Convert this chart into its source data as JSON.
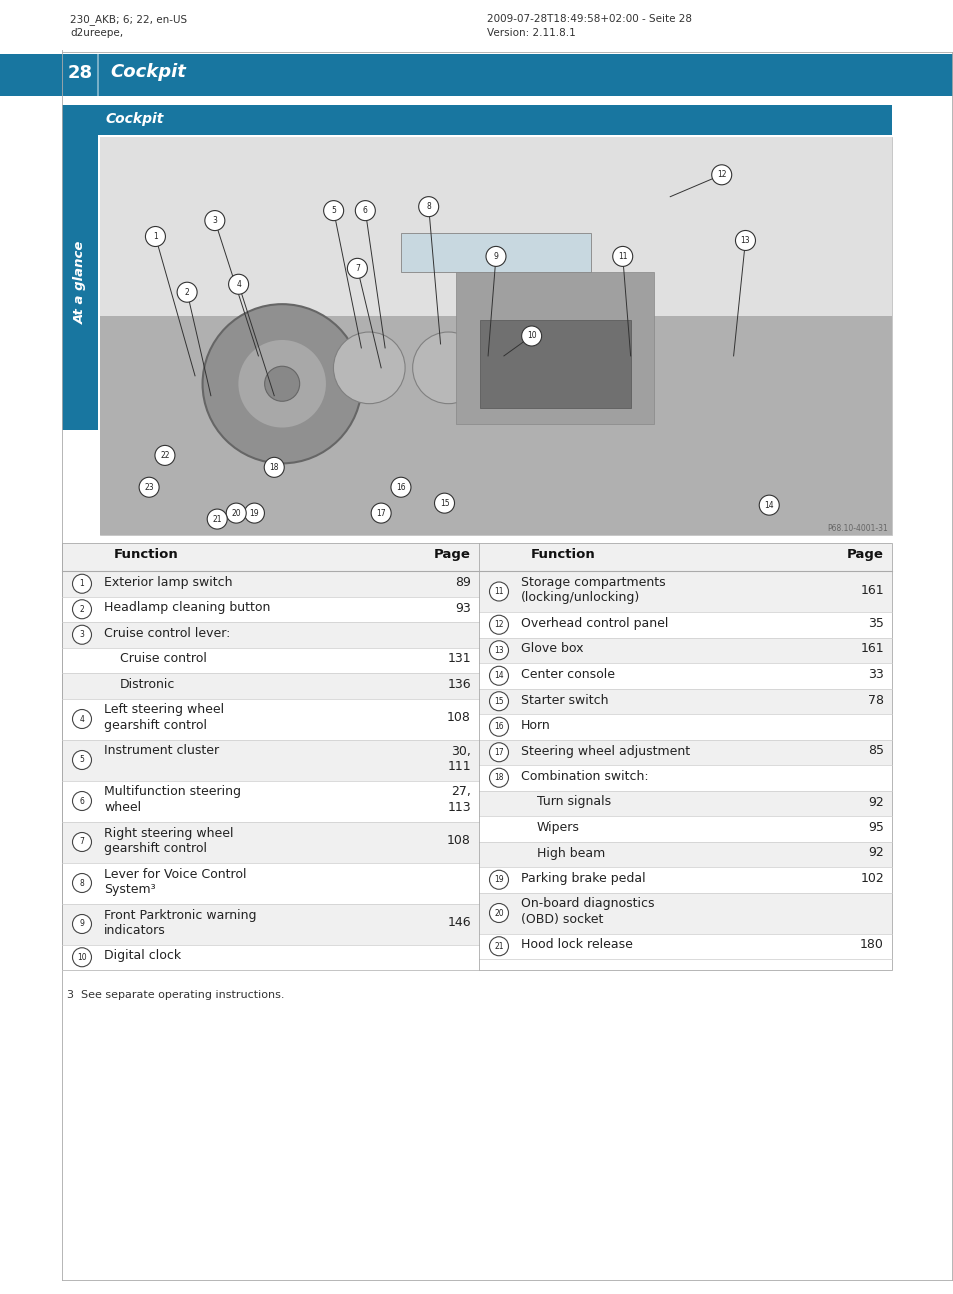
{
  "page_number": "28",
  "chapter_title": "Cockpit",
  "section_title": "Cockpit",
  "sidebar_text": "At a glance",
  "header_left_line1": "230_AKB; 6; 22, en-US",
  "header_left_line2": "d2ureepe,",
  "header_right_line1": "2009-07-28T18:49:58+02:00 - Seite 28",
  "header_right_line2": "Version: 2.11.8.1",
  "blue": "#1876a0",
  "page_bg": "#ffffff",
  "footnote": "3  See separate operating instructions.",
  "img_credit": "P68.10-4001-31",
  "left_rows": [
    {
      "num": "1",
      "func1": "Exterior lamp switch",
      "func2": "",
      "page": "89",
      "sub": false,
      "sub2": false
    },
    {
      "num": "2",
      "func1": "Headlamp cleaning button",
      "func2": "",
      "page": "93",
      "sub": false,
      "sub2": false
    },
    {
      "num": "3",
      "func1": "Cruise control lever:",
      "func2": "",
      "page": "",
      "sub": false,
      "sub2": false
    },
    {
      "num": null,
      "func1": "Cruise control",
      "func2": "",
      "page": "131",
      "sub": true,
      "sub2": false
    },
    {
      "num": null,
      "func1": "Distronic",
      "func2": "",
      "page": "136",
      "sub": true,
      "sub2": false
    },
    {
      "num": "4",
      "func1": "Left steering wheel",
      "func2": "gearshift control",
      "page": "108",
      "sub": false,
      "sub2": true
    },
    {
      "num": "5",
      "func1": "Instrument cluster",
      "func2": "",
      "page": "30,\n111",
      "sub": false,
      "sub2": false
    },
    {
      "num": "6",
      "func1": "Multifunction steering",
      "func2": "wheel",
      "page": "27,\n113",
      "sub": false,
      "sub2": true
    },
    {
      "num": "7",
      "func1": "Right steering wheel",
      "func2": "gearshift control",
      "page": "108",
      "sub": false,
      "sub2": true
    },
    {
      "num": "8",
      "func1": "Lever for Voice Control",
      "func2": "System³",
      "page": "",
      "sub": false,
      "sub2": true
    },
    {
      "num": "9",
      "func1": "Front Parktronic warning",
      "func2": "indicators",
      "page": "146",
      "sub": false,
      "sub2": true
    },
    {
      "num": "10",
      "func1": "Digital clock",
      "func2": "",
      "page": "",
      "sub": false,
      "sub2": false
    }
  ],
  "right_rows": [
    {
      "num": "11",
      "func1": "Storage compartments",
      "func2": "(locking/unlocking)",
      "page": "161",
      "sub": false,
      "sub2": true
    },
    {
      "num": "12",
      "func1": "Overhead control panel",
      "func2": "",
      "page": "35",
      "sub": false,
      "sub2": false
    },
    {
      "num": "13",
      "func1": "Glove box",
      "func2": "",
      "page": "161",
      "sub": false,
      "sub2": false
    },
    {
      "num": "14",
      "func1": "Center console",
      "func2": "",
      "page": "33",
      "sub": false,
      "sub2": false
    },
    {
      "num": "15",
      "func1": "Starter switch",
      "func2": "",
      "page": "78",
      "sub": false,
      "sub2": false
    },
    {
      "num": "16",
      "func1": "Horn",
      "func2": "",
      "page": "",
      "sub": false,
      "sub2": false
    },
    {
      "num": "17",
      "func1": "Steering wheel adjustment",
      "func2": "",
      "page": "85",
      "sub": false,
      "sub2": false
    },
    {
      "num": "18",
      "func1": "Combination switch:",
      "func2": "",
      "page": "",
      "sub": false,
      "sub2": false
    },
    {
      "num": null,
      "func1": "Turn signals",
      "func2": "",
      "page": "92",
      "sub": true,
      "sub2": false
    },
    {
      "num": null,
      "func1": "Wipers",
      "func2": "",
      "page": "95",
      "sub": true,
      "sub2": false
    },
    {
      "num": null,
      "func1": "High beam",
      "func2": "",
      "page": "92",
      "sub": true,
      "sub2": false
    },
    {
      "num": "19",
      "func1": "Parking brake pedal",
      "func2": "",
      "page": "102",
      "sub": false,
      "sub2": false
    },
    {
      "num": "20",
      "func1": "On-board diagnostics",
      "func2": "(OBD) socket",
      "page": "",
      "sub": false,
      "sub2": true
    },
    {
      "num": "21",
      "func1": "Hood lock release",
      "func2": "",
      "page": "180",
      "sub": false,
      "sub2": false
    }
  ]
}
